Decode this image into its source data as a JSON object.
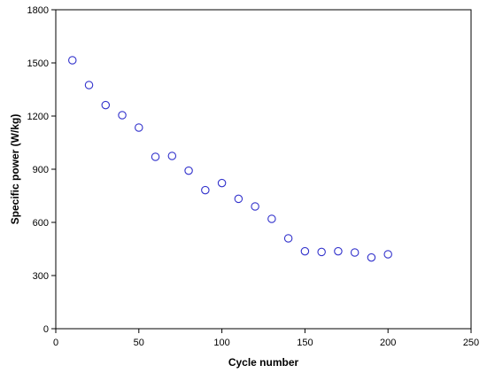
{
  "chart_data": {
    "type": "scatter",
    "title": "",
    "xlabel": "Cycle number",
    "ylabel": "Specific power (W/kg)",
    "xlim": [
      0,
      250
    ],
    "ylim": [
      0,
      1800
    ],
    "x_ticks": [
      0,
      50,
      100,
      150,
      200,
      250
    ],
    "y_ticks": [
      0,
      300,
      600,
      900,
      1200,
      1500,
      1800
    ],
    "grid": false,
    "legend": "none",
    "marker": "open-circle",
    "marker_color": "#3333cc",
    "series": [
      {
        "x": [
          10,
          20,
          30,
          40,
          50,
          60,
          70,
          80,
          90,
          100,
          110,
          120,
          130,
          140,
          150,
          160,
          170,
          180,
          190,
          200
        ],
        "y": [
          1515,
          1375,
          1262,
          1205,
          1135,
          970,
          975,
          892,
          782,
          822,
          733,
          690,
          620,
          510,
          437,
          433,
          437,
          430,
          402,
          420
        ]
      }
    ]
  }
}
